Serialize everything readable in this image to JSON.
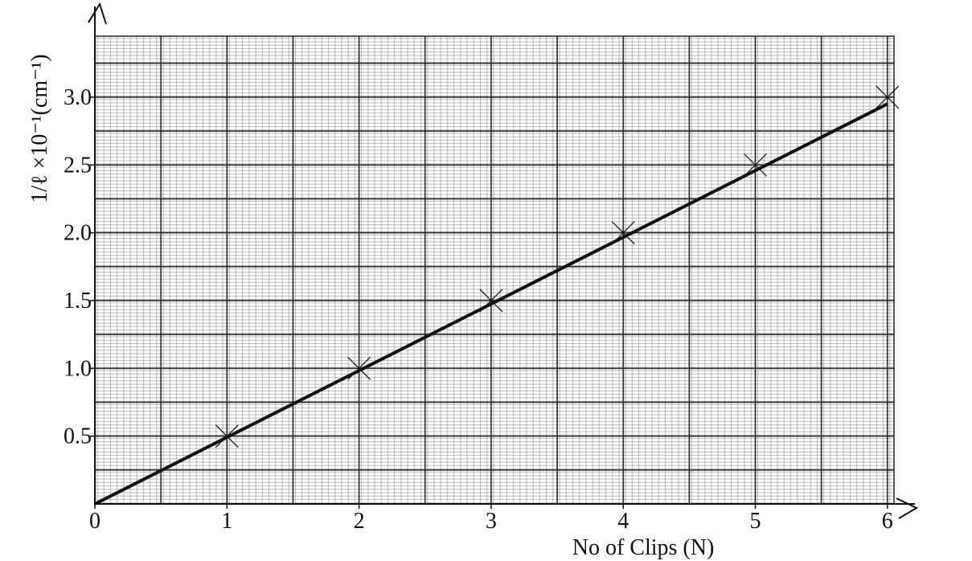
{
  "chart_data": {
    "type": "scatter",
    "x_label": "No of Clips (N)",
    "y_label": "1/ℓ ×10⁻¹(cm⁻¹)",
    "x": [
      1,
      2,
      3,
      4,
      5,
      6
    ],
    "values": [
      0.5,
      1.0,
      1.5,
      2.0,
      2.5,
      3.0
    ],
    "fit_line": {
      "x": [
        0,
        6
      ],
      "values": [
        0,
        2.95
      ]
    },
    "color": "#111111",
    "xlim": [
      0,
      6.05
    ],
    "ylim": [
      0,
      3.45
    ],
    "xticks": [
      0,
      1,
      2,
      3,
      4,
      5,
      6
    ],
    "yticks": [
      0.5,
      {
        "value": 1,
        "label": "1.0"
      },
      1.5,
      {
        "value": 2,
        "label": "2.0"
      },
      2.5,
      {
        "value": 3,
        "label": "3.0"
      }
    ],
    "grid": true
  }
}
